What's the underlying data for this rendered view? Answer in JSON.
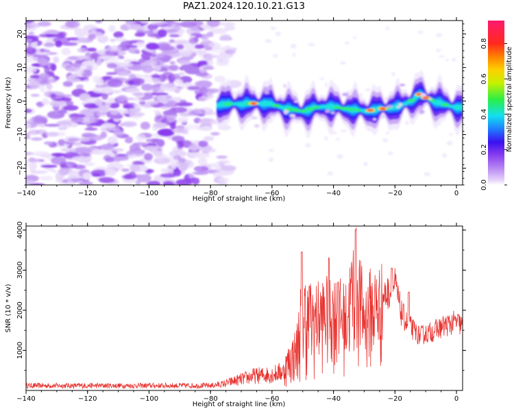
{
  "figure": {
    "title": "PAZ1.2024.120.10.21.G13"
  },
  "colors": {
    "snr_line": "#e8312e",
    "noise_purple": "#9a50ee",
    "signal_core": "#ff3b2f"
  },
  "chart_data": [
    {
      "type": "heatmap",
      "name": "spectrogram",
      "xlabel": "Height of straight line (km)",
      "ylabel": "Frequency (Hz)",
      "xlim": [
        -140,
        2
      ],
      "ylim": [
        -25,
        24
      ],
      "xticks": [
        -140,
        -120,
        -100,
        -80,
        -60,
        -40,
        -20,
        0
      ],
      "yticks": [
        -20,
        -10,
        0,
        10,
        20
      ],
      "colorbar": {
        "label": "Normalized spectral amplitude",
        "range": [
          0,
          0.93
        ],
        "ticks": [
          "0.0",
          "0.2",
          "0.4",
          "0.6",
          "0.8"
        ],
        "colormap": "rainbow (white → purple → blue → cyan → green → yellow → orange → red → magenta)"
      },
      "signal_track": {
        "start_km": -78,
        "x": [
          -78,
          -70,
          -62,
          -58,
          -54,
          -50,
          -46,
          -42,
          -38,
          -34,
          -30,
          -26,
          -22,
          -18,
          -14,
          -12,
          -10,
          -6,
          -2,
          2
        ],
        "frequency_hz": [
          -1,
          -0.8,
          -0.6,
          -1.5,
          -2.5,
          -3,
          -2,
          -1.5,
          -2,
          -2.5,
          -3,
          -2.5,
          -2,
          -1.5,
          0.5,
          2,
          1,
          -0.5,
          -1.5,
          -2
        ],
        "peak_amplitude_near_km": [
          -66,
          -24,
          -28,
          -12,
          -10
        ]
      },
      "noise_region_km": [
        -140,
        -72
      ]
    },
    {
      "type": "line",
      "name": "snr",
      "xlabel": "Height of straight line (km)",
      "ylabel": "SNR (10 * v/v)",
      "xlim": [
        -140,
        2
      ],
      "ylim": [
        0,
        4100
      ],
      "xticks": [
        -140,
        -120,
        -100,
        -80,
        -60,
        -40,
        -20,
        0
      ],
      "yticks": [
        1000,
        2000,
        3000,
        4000
      ],
      "envelope_km": [
        -140,
        -120,
        -100,
        -80,
        -76,
        -70,
        -66,
        -60,
        -56,
        -52,
        -50,
        -48,
        -46,
        -44,
        -40,
        -36,
        -34,
        -33,
        -30,
        -28,
        -24,
        -22,
        -20,
        -18,
        -16,
        -12,
        -8,
        -4,
        0,
        2
      ],
      "envelope_snr": [
        150,
        150,
        150,
        150,
        200,
        350,
        450,
        500,
        600,
        1100,
        2200,
        1800,
        2000,
        2100,
        2200,
        2000,
        2700,
        3200,
        2000,
        2300,
        2400,
        2500,
        2700,
        2000,
        1700,
        1400,
        1500,
        1650,
        1750,
        1650
      ],
      "peaks": [
        {
          "x": -50.3,
          "y": 3450
        },
        {
          "x": -47.8,
          "y": 2600
        },
        {
          "x": -41.5,
          "y": 3300
        },
        {
          "x": -38.5,
          "y": 2700
        },
        {
          "x": -32.8,
          "y": 4000
        },
        {
          "x": -21,
          "y": 3050
        },
        {
          "x": -15.5,
          "y": 2450
        }
      ]
    }
  ]
}
